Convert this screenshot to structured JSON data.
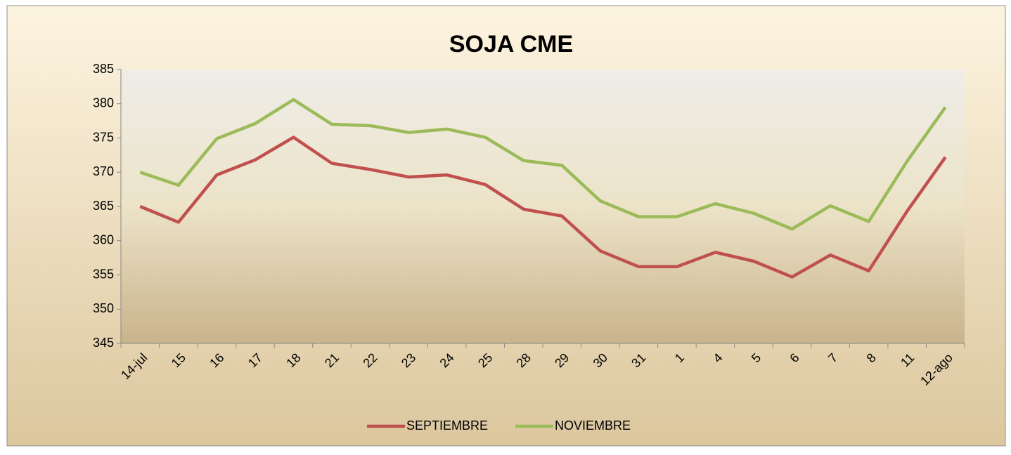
{
  "chart_data": {
    "type": "line",
    "title": "SOJA CME",
    "categories": [
      "14-jul",
      "15",
      "16",
      "17",
      "18",
      "21",
      "22",
      "23",
      "24",
      "25",
      "28",
      "29",
      "30",
      "31",
      "1",
      "4",
      "5",
      "6",
      "7",
      "8",
      "11",
      "12-ago"
    ],
    "series": [
      {
        "name": "SEPTIEMBRE",
        "color": "#c0504d",
        "values": [
          365,
          362.7,
          369.6,
          371.8,
          375.1,
          371.3,
          370.4,
          369.3,
          369.6,
          368.2,
          364.6,
          363.6,
          358.5,
          356.2,
          356.2,
          358.3,
          357,
          354.7,
          357.9,
          355.6,
          364.3,
          372.2
        ]
      },
      {
        "name": "NOVIEMBRE",
        "color": "#9bbb59",
        "values": [
          370,
          368.1,
          374.9,
          377.1,
          380.6,
          377,
          376.8,
          375.8,
          376.3,
          375.1,
          371.7,
          371,
          365.8,
          363.5,
          363.5,
          365.4,
          364,
          361.7,
          365.1,
          362.8,
          371.6,
          379.5
        ]
      }
    ],
    "ylim": [
      345,
      385
    ],
    "yticks": [
      345,
      350,
      355,
      360,
      365,
      370,
      375,
      380,
      385
    ],
    "grid": false,
    "legend": "bottom"
  }
}
